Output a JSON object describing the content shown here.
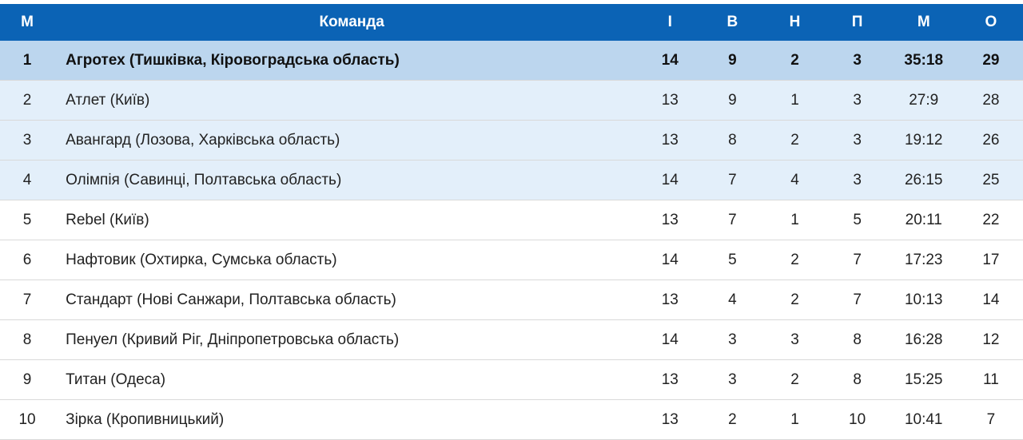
{
  "headers": {
    "pos": "М",
    "team": "Команда",
    "games": "І",
    "w": "В",
    "d": "Н",
    "l": "П",
    "goals": "М",
    "pts": "О"
  },
  "rows": [
    {
      "pos": "1",
      "team": "Агротех (Тишківка, Кіровоградська область)",
      "games": "14",
      "w": "9",
      "d": "2",
      "l": "3",
      "goals": "35:18",
      "pts": "29"
    },
    {
      "pos": "2",
      "team": "Атлет (Київ)",
      "games": "13",
      "w": "9",
      "d": "1",
      "l": "3",
      "goals": "27:9",
      "pts": "28"
    },
    {
      "pos": "3",
      "team": "Авангард (Лозова, Харківська область)",
      "games": "13",
      "w": "8",
      "d": "2",
      "l": "3",
      "goals": "19:12",
      "pts": "26"
    },
    {
      "pos": "4",
      "team": "Олімпія (Савинці, Полтавська область)",
      "games": "14",
      "w": "7",
      "d": "4",
      "l": "3",
      "goals": "26:15",
      "pts": "25"
    },
    {
      "pos": "5",
      "team": "Rebel (Київ)",
      "games": "13",
      "w": "7",
      "d": "1",
      "l": "5",
      "goals": "20:11",
      "pts": "22"
    },
    {
      "pos": "6",
      "team": "Нафтовик (Охтирка, Сумська область)",
      "games": "14",
      "w": "5",
      "d": "2",
      "l": "7",
      "goals": "17:23",
      "pts": "17"
    },
    {
      "pos": "7",
      "team": "Стандарт (Нові Санжари, Полтавська область)",
      "games": "13",
      "w": "4",
      "d": "2",
      "l": "7",
      "goals": "10:13",
      "pts": "14"
    },
    {
      "pos": "8",
      "team": "Пенуел (Кривий Ріг, Дніпропетровська область)",
      "games": "14",
      "w": "3",
      "d": "3",
      "l": "8",
      "goals": "16:28",
      "pts": "12"
    },
    {
      "pos": "9",
      "team": "Титан (Одеса)",
      "games": "13",
      "w": "3",
      "d": "2",
      "l": "8",
      "goals": "15:25",
      "pts": "11"
    },
    {
      "pos": "10",
      "team": "Зірка (Кропивницький)",
      "games": "13",
      "w": "2",
      "d": "1",
      "l": "10",
      "goals": "10:41",
      "pts": "7"
    }
  ]
}
